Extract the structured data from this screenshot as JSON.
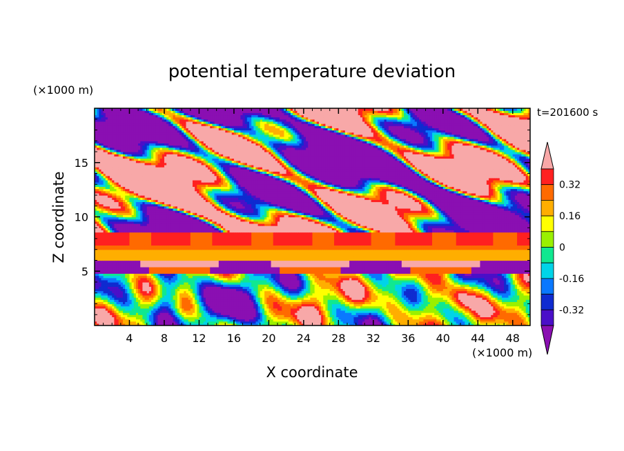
{
  "chart_data": {
    "type": "heatmap",
    "title": "potential temperature deviation",
    "time_label": "t=201600 s",
    "xlabel": "X coordinate",
    "ylabel": "Z coordinate",
    "x_unit": "(×1000 m)",
    "y_unit": "(×1000 m)",
    "xlim": [
      0,
      50
    ],
    "ylim": [
      0,
      20
    ],
    "x_ticks": [
      4,
      8,
      12,
      16,
      20,
      24,
      28,
      32,
      36,
      40,
      44,
      48
    ],
    "y_ticks": [
      5,
      10,
      15
    ],
    "colorbar": {
      "levels": [
        -0.4,
        -0.32,
        -0.24,
        -0.16,
        -0.08,
        0,
        0.08,
        0.16,
        0.24,
        0.32,
        0.4
      ],
      "colors": [
        "#8a0fb2",
        "#4a0fc8",
        "#0f2bd0",
        "#0a78ff",
        "#00d4e8",
        "#10e890",
        "#9af000",
        "#ffff00",
        "#ffae00",
        "#ff6a00",
        "#ff2020",
        "#f8a8a8"
      ],
      "tick_labels": [
        "0.32",
        "0.16",
        "0",
        "-0.16",
        "-0.32"
      ],
      "tick_values": [
        0.32,
        0.16,
        0,
        -0.16,
        -0.32
      ],
      "extend": "both"
    },
    "field_description_visible": {
      "upper_layer": "interleaved positive (pink) and negative (purple) patches above z≈9",
      "middle_layer": "bands near z≈6-8 dominated by positive values",
      "lower_layer": "wavy structures below z≈5 ranging from negative to positive"
    }
  }
}
